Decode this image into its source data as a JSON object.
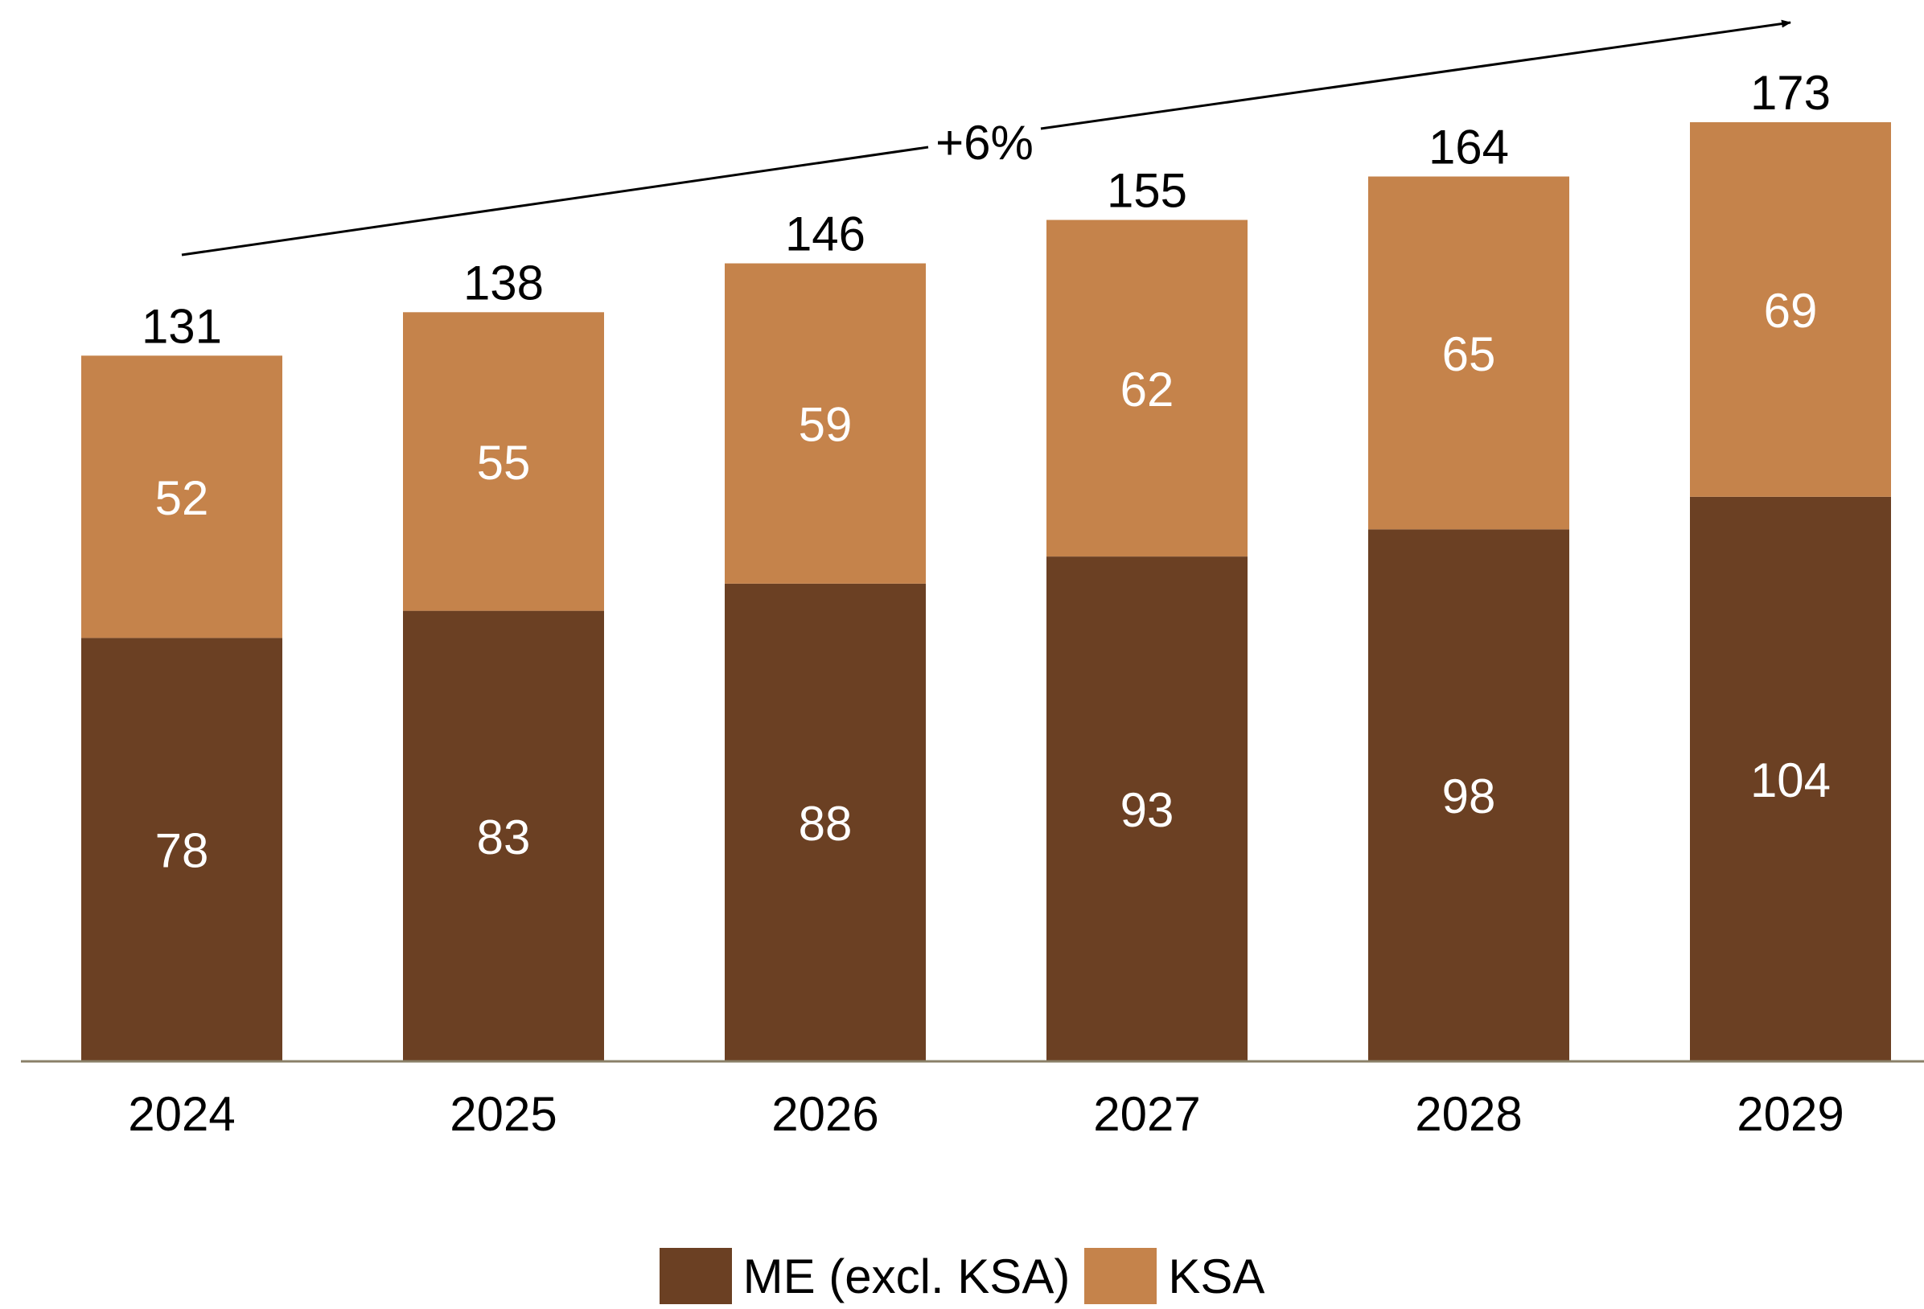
{
  "chart_data": {
    "type": "bar",
    "stacked": true,
    "categories": [
      "2024",
      "2025",
      "2026",
      "2027",
      "2028",
      "2029"
    ],
    "series": [
      {
        "name": "ME (excl. KSA)",
        "values": [
          78,
          83,
          88,
          93,
          98,
          104
        ],
        "color": "#6B4023"
      },
      {
        "name": "KSA",
        "values": [
          52,
          55,
          59,
          62,
          65,
          69
        ],
        "color": "#C5834B"
      }
    ],
    "totals": [
      131,
      138,
      146,
      155,
      164,
      173
    ],
    "annotation": "+6%",
    "ylim": [
      0,
      173
    ],
    "grid": false,
    "legend_position": "bottom",
    "title": "",
    "xlabel": "",
    "ylabel": ""
  }
}
